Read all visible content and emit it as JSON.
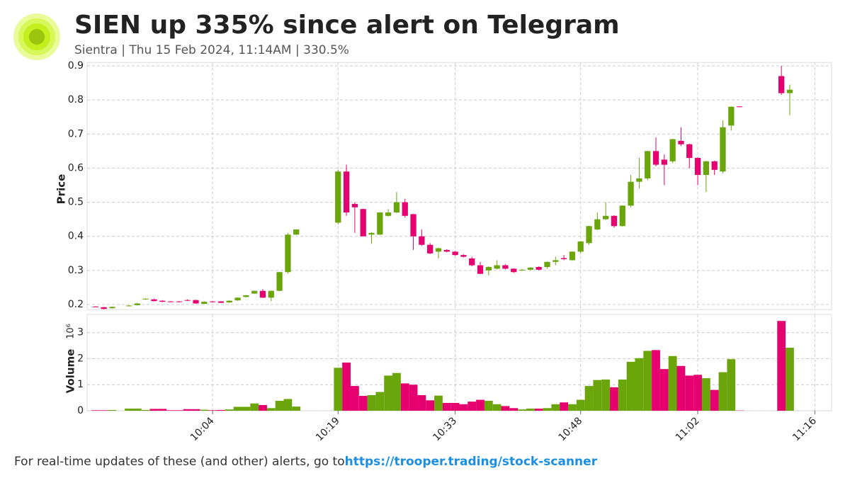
{
  "header": {
    "title": "SIEN up 335% since alert on Telegram",
    "subtitle": "Sientra | Thu 15 Feb 2024, 11:14AM | 330.5%"
  },
  "footer": {
    "text": "For real-time updates of these (and other) alerts, go to ",
    "link": "https://trooper.trading/stock-scanner"
  },
  "chart_data": {
    "type": "candlestick",
    "ylabel": "Price",
    "volume_label": "Volume",
    "volume_scale": "10⁶",
    "up_color": "#6aa50c",
    "down_color": "#e6006f",
    "grid": true,
    "xlim": [
      "09:49",
      "11:18"
    ],
    "xticks": [
      "10:04",
      "10:19",
      "10:33",
      "10:48",
      "11:02",
      "11:16"
    ],
    "ylim": [
      0.185,
      0.91
    ],
    "yticks": [
      0.2,
      0.3,
      0.4,
      0.5,
      0.6,
      0.7,
      0.8,
      0.9
    ],
    "volume_ylim": [
      0,
      3.7
    ],
    "volume_ticks": [
      0,
      1,
      2,
      3
    ],
    "x": [
      "09:50",
      "09:51",
      "09:52",
      "09:54",
      "09:55",
      "09:56",
      "09:57",
      "09:58",
      "09:59",
      "10:00",
      "10:01",
      "10:02",
      "10:03",
      "10:04",
      "10:05",
      "10:06",
      "10:07",
      "10:08",
      "10:09",
      "10:10",
      "10:11",
      "10:12",
      "10:13",
      "10:14",
      "10:19",
      "10:20",
      "10:21",
      "10:22",
      "10:23",
      "10:24",
      "10:25",
      "10:26",
      "10:27",
      "10:28",
      "10:29",
      "10:30",
      "10:31",
      "10:32",
      "10:33",
      "10:34",
      "10:35",
      "10:36",
      "10:37",
      "10:38",
      "10:39",
      "10:40",
      "10:41",
      "10:42",
      "10:43",
      "10:44",
      "10:45",
      "10:46",
      "10:47",
      "10:48",
      "10:49",
      "10:50",
      "10:51",
      "10:52",
      "10:53",
      "10:54",
      "10:55",
      "10:56",
      "10:57",
      "10:58",
      "10:59",
      "11:00",
      "11:01",
      "11:02",
      "11:03",
      "11:04",
      "11:05",
      "11:06",
      "11:07",
      "11:12",
      "11:13"
    ],
    "open": [
      0.194,
      0.192,
      0.189,
      0.195,
      0.198,
      0.215,
      0.215,
      0.211,
      0.209,
      0.209,
      0.213,
      0.213,
      0.202,
      0.209,
      0.209,
      0.206,
      0.212,
      0.222,
      0.232,
      0.24,
      0.22,
      0.24,
      0.295,
      0.405,
      0.44,
      0.59,
      0.495,
      0.48,
      0.405,
      0.405,
      0.46,
      0.47,
      0.5,
      0.465,
      0.4,
      0.375,
      0.355,
      0.36,
      0.355,
      0.345,
      0.335,
      0.315,
      0.3,
      0.305,
      0.315,
      0.305,
      0.3,
      0.302,
      0.31,
      0.31,
      0.325,
      0.336,
      0.33,
      0.355,
      0.38,
      0.42,
      0.45,
      0.46,
      0.43,
      0.49,
      0.56,
      0.57,
      0.65,
      0.625,
      0.62,
      0.68,
      0.67,
      0.63,
      0.58,
      0.62,
      0.59,
      0.725,
      0.781,
      0.87,
      0.82
    ],
    "high": [
      0.195,
      0.193,
      0.194,
      0.198,
      0.205,
      0.218,
      0.217,
      0.213,
      0.21,
      0.21,
      0.215,
      0.214,
      0.209,
      0.21,
      0.21,
      0.212,
      0.221,
      0.228,
      0.241,
      0.245,
      0.241,
      0.296,
      0.41,
      0.421,
      0.595,
      0.61,
      0.5,
      0.481,
      0.412,
      0.471,
      0.48,
      0.53,
      0.51,
      0.466,
      0.42,
      0.38,
      0.367,
      0.362,
      0.357,
      0.347,
      0.34,
      0.325,
      0.312,
      0.33,
      0.318,
      0.306,
      0.304,
      0.31,
      0.312,
      0.326,
      0.34,
      0.345,
      0.356,
      0.386,
      0.431,
      0.47,
      0.5,
      0.462,
      0.491,
      0.58,
      0.63,
      0.651,
      0.69,
      0.64,
      0.686,
      0.72,
      0.672,
      0.632,
      0.621,
      0.622,
      0.74,
      0.781,
      0.782,
      0.9,
      0.845
    ],
    "low": [
      0.192,
      0.186,
      0.188,
      0.194,
      0.197,
      0.214,
      0.209,
      0.207,
      0.207,
      0.206,
      0.21,
      0.202,
      0.201,
      0.206,
      0.204,
      0.205,
      0.211,
      0.221,
      0.231,
      0.219,
      0.21,
      0.239,
      0.29,
      0.404,
      0.435,
      0.46,
      0.41,
      0.4,
      0.378,
      0.404,
      0.458,
      0.468,
      0.455,
      0.36,
      0.372,
      0.348,
      0.335,
      0.353,
      0.343,
      0.338,
      0.312,
      0.289,
      0.285,
      0.303,
      0.303,
      0.293,
      0.298,
      0.3,
      0.3,
      0.305,
      0.315,
      0.33,
      0.328,
      0.35,
      0.375,
      0.418,
      0.448,
      0.425,
      0.428,
      0.485,
      0.54,
      0.565,
      0.605,
      0.55,
      0.615,
      0.665,
      0.6,
      0.55,
      0.53,
      0.58,
      0.585,
      0.71,
      0.779,
      0.815,
      0.755
    ],
    "close": [
      0.193,
      0.187,
      0.193,
      0.197,
      0.203,
      0.217,
      0.21,
      0.208,
      0.208,
      0.207,
      0.211,
      0.203,
      0.208,
      0.207,
      0.205,
      0.211,
      0.22,
      0.227,
      0.24,
      0.22,
      0.24,
      0.295,
      0.405,
      0.42,
      0.59,
      0.47,
      0.485,
      0.4,
      0.41,
      0.47,
      0.47,
      0.5,
      0.46,
      0.4,
      0.375,
      0.35,
      0.365,
      0.355,
      0.345,
      0.34,
      0.315,
      0.29,
      0.31,
      0.315,
      0.305,
      0.295,
      0.302,
      0.308,
      0.302,
      0.325,
      0.33,
      0.333,
      0.355,
      0.385,
      0.43,
      0.45,
      0.46,
      0.43,
      0.49,
      0.56,
      0.57,
      0.65,
      0.61,
      0.61,
      0.685,
      0.67,
      0.63,
      0.58,
      0.62,
      0.595,
      0.72,
      0.78,
      0.78,
      0.82,
      0.83
    ],
    "volume": [
      0.02,
      0.02,
      0.03,
      0.08,
      0.08,
      0.03,
      0.07,
      0.07,
      0.02,
      0.02,
      0.06,
      0.06,
      0.04,
      0.02,
      0.03,
      0.05,
      0.15,
      0.15,
      0.28,
      0.22,
      0.1,
      0.38,
      0.45,
      0.16,
      1.65,
      1.85,
      0.95,
      0.57,
      0.6,
      0.72,
      1.35,
      1.45,
      1.05,
      1.0,
      0.6,
      0.4,
      0.58,
      0.3,
      0.3,
      0.25,
      0.35,
      0.42,
      0.38,
      0.25,
      0.18,
      0.1,
      0.05,
      0.08,
      0.08,
      0.1,
      0.25,
      0.32,
      0.25,
      0.42,
      0.95,
      1.18,
      1.2,
      0.9,
      1.2,
      1.88,
      2.02,
      2.3,
      2.33,
      1.6,
      2.1,
      1.72,
      1.35,
      1.38,
      1.25,
      0.8,
      1.48,
      1.98,
      0.01,
      3.45,
      2.42
    ]
  }
}
